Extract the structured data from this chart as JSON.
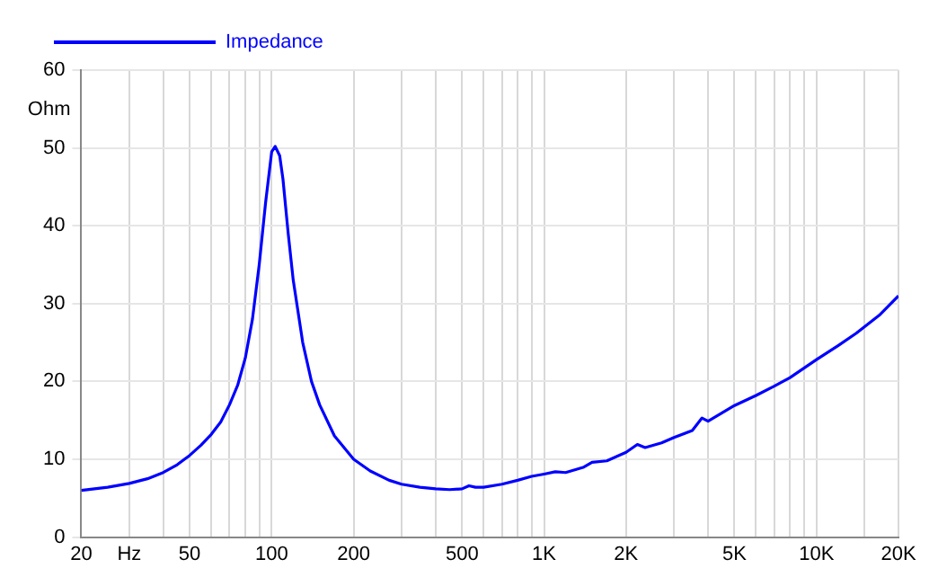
{
  "chart_data": {
    "type": "line",
    "ylabel": "Ohm",
    "log": "x",
    "grid": true,
    "legend": "top left",
    "marker": "none",
    "line_style": "solid",
    "xlim": [
      20,
      20000
    ],
    "ylim": [
      0,
      60
    ],
    "xticks": [
      20,
      {
        "value": 30,
        "label": "Hz"
      },
      {
        "value": 40,
        "label": null
      },
      50,
      {
        "value": 60,
        "label": null
      },
      {
        "value": 70,
        "label": null
      },
      {
        "value": 80,
        "label": null
      },
      {
        "value": 90,
        "label": null
      },
      100,
      200,
      {
        "value": 300,
        "label": null
      },
      {
        "value": 400,
        "label": null
      },
      500,
      {
        "value": 600,
        "label": null
      },
      {
        "value": 700,
        "label": null
      },
      {
        "value": 800,
        "label": null
      },
      {
        "value": 900,
        "label": null
      },
      {
        "value": 1000,
        "label": "1K"
      },
      {
        "value": 2000,
        "label": "2K"
      },
      {
        "value": 3000,
        "label": null
      },
      {
        "value": 4000,
        "label": null
      },
      {
        "value": 5000,
        "label": "5K"
      },
      {
        "value": 6000,
        "label": null
      },
      {
        "value": 7000,
        "label": null
      },
      {
        "value": 8000,
        "label": null
      },
      {
        "value": 9000,
        "label": null
      },
      {
        "value": 10000,
        "label": "10K"
      },
      {
        "value": 15000,
        "label": null
      },
      {
        "value": 20000,
        "label": "20K"
      }
    ],
    "yticks": [
      0,
      10,
      20,
      30,
      40,
      50,
      60
    ],
    "series": [
      {
        "name": "Impedance",
        "color": "#0000ff",
        "x": [
          20,
          25,
          30,
          35,
          40,
          45,
          50,
          55,
          60,
          65,
          70,
          75,
          80,
          85,
          90,
          95,
          100,
          103,
          107,
          110,
          115,
          120,
          130,
          140,
          150,
          170,
          200,
          230,
          270,
          300,
          350,
          400,
          450,
          500,
          530,
          560,
          600,
          700,
          800,
          900,
          1000,
          1100,
          1200,
          1400,
          1500,
          1700,
          2000,
          2200,
          2350,
          2700,
          3000,
          3500,
          3800,
          4000,
          5000,
          6000,
          7000,
          8000,
          10000,
          12000,
          14000,
          17000,
          20000
        ],
        "values": [
          6.0,
          6.4,
          6.9,
          7.5,
          8.3,
          9.3,
          10.5,
          11.8,
          13.2,
          14.8,
          17,
          19.5,
          23,
          28,
          35,
          43,
          49.5,
          50.2,
          49,
          46,
          39,
          33,
          25,
          20,
          17,
          13,
          10,
          8.5,
          7.3,
          6.8,
          6.4,
          6.2,
          6.1,
          6.2,
          6.6,
          6.4,
          6.4,
          6.8,
          7.3,
          7.8,
          8.1,
          8.4,
          8.3,
          9.0,
          9.6,
          9.8,
          10.9,
          11.9,
          11.5,
          12.1,
          12.8,
          13.7,
          15.3,
          14.9,
          16.9,
          18.2,
          19.4,
          20.5,
          22.8,
          24.6,
          26.2,
          28.5,
          31
        ]
      }
    ]
  }
}
